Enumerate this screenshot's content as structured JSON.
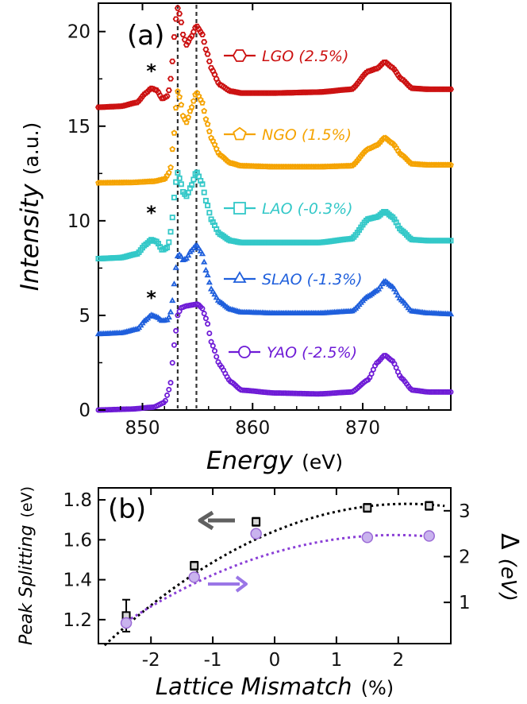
{
  "chart_data": [
    {
      "panel": "(a)",
      "type": "line",
      "xlabel": "Energy",
      "xlabel_unit": "(eV)",
      "ylabel": "Intensity",
      "ylabel_unit": "(a.u.)",
      "xlim": [
        846,
        878
      ],
      "ylim": [
        0,
        21.5
      ],
      "xticks": [
        850,
        860,
        870
      ],
      "yticks": [
        0,
        5,
        10,
        15,
        20
      ],
      "vlines": [
        853.2,
        854.9
      ],
      "star_label": "*",
      "stars": [
        {
          "x": 850.8,
          "y": 18.0
        },
        {
          "x": 850.8,
          "y": 10.5
        },
        {
          "x": 850.8,
          "y": 6.0
        }
      ],
      "series": [
        {
          "name": "LGO (2.5%)",
          "color": "#cc1111",
          "marker": "hexagon",
          "offset": 16.0,
          "x": [
            846,
            848,
            849.5,
            850.3,
            850.8,
            851.3,
            851.8,
            852.3,
            852.6,
            852.9,
            853.15,
            853.4,
            853.7,
            854.0,
            854.4,
            854.9,
            855.4,
            855.8,
            856.3,
            857,
            858,
            859,
            862,
            866,
            869,
            870.5,
            871.3,
            872,
            872.7,
            873.5,
            874.5,
            876,
            878
          ],
          "y": [
            16.0,
            16.05,
            16.25,
            16.75,
            17.0,
            16.9,
            16.45,
            16.6,
            17.6,
            19.8,
            21.3,
            20.9,
            19.8,
            19.3,
            19.7,
            20.3,
            19.9,
            19.0,
            18.0,
            17.2,
            16.85,
            16.75,
            16.75,
            16.8,
            16.95,
            17.9,
            18.05,
            18.4,
            18.1,
            17.5,
            17.0,
            16.95,
            16.95
          ]
        },
        {
          "name": "NGO (1.5%)",
          "color": "#f5a300",
          "marker": "pentagon",
          "offset": 12.0,
          "x": [
            846,
            849,
            851,
            852,
            852.5,
            852.9,
            853.15,
            853.4,
            853.7,
            854.0,
            854.4,
            854.9,
            855.4,
            855.8,
            856.3,
            857,
            858,
            859,
            862,
            866,
            869,
            870.5,
            871.3,
            872,
            872.7,
            873.5,
            874.5,
            876,
            878
          ],
          "y": [
            12.0,
            12.02,
            12.08,
            12.2,
            12.6,
            14.7,
            16.9,
            16.5,
            15.5,
            15.2,
            15.9,
            16.8,
            16.3,
            15.3,
            14.3,
            13.5,
            13.05,
            12.9,
            12.85,
            12.85,
            12.9,
            13.8,
            14.0,
            14.4,
            14.1,
            13.5,
            13.0,
            12.95,
            12.95
          ]
        },
        {
          "name": "LAO (-0.3%)",
          "color": "#33c8c8",
          "marker": "square",
          "offset": 8.0,
          "x": [
            846,
            848,
            849.5,
            850.3,
            850.8,
            851.3,
            851.8,
            852.3,
            852.6,
            852.9,
            853.15,
            853.4,
            853.7,
            854.0,
            854.4,
            854.9,
            855.4,
            855.8,
            856.3,
            857,
            858,
            859,
            862,
            866,
            869,
            870.5,
            871.3,
            872,
            872.7,
            873.5,
            874.5,
            876,
            878
          ],
          "y": [
            8.0,
            8.05,
            8.25,
            8.75,
            9.0,
            8.9,
            8.45,
            8.6,
            9.5,
            11.3,
            12.6,
            12.2,
            11.5,
            11.3,
            11.8,
            12.6,
            12.0,
            11.0,
            10.0,
            9.3,
            8.95,
            8.85,
            8.85,
            8.85,
            9.05,
            10.1,
            10.2,
            10.5,
            10.2,
            9.5,
            9.0,
            8.95,
            8.95
          ]
        },
        {
          "name": "SLAO (-1.3%)",
          "color": "#1f5fdc",
          "marker": "triangle",
          "offset": 4.0,
          "x": [
            846,
            848,
            849.5,
            850.3,
            850.8,
            851.3,
            851.8,
            852.3,
            852.6,
            852.9,
            853.15,
            853.4,
            853.7,
            854.0,
            854.4,
            854.9,
            855.4,
            855.8,
            856.3,
            857,
            858,
            859,
            862,
            866,
            869,
            870.5,
            871.3,
            872,
            872.7,
            873.5,
            874.5,
            876,
            878
          ],
          "y": [
            4.0,
            4.05,
            4.25,
            4.75,
            5.0,
            4.9,
            4.7,
            4.75,
            5.2,
            6.7,
            8.1,
            8.2,
            7.9,
            8.0,
            8.4,
            8.7,
            8.3,
            7.3,
            6.3,
            5.7,
            5.3,
            5.15,
            5.1,
            5.1,
            5.2,
            6.0,
            6.3,
            6.8,
            6.5,
            5.8,
            5.2,
            5.1,
            5.05
          ]
        },
        {
          "name": "YAO (-2.5%)",
          "color": "#6e1bd6",
          "marker": "circle",
          "offset": 0.0,
          "x": [
            846,
            849,
            851,
            852,
            852.5,
            852.9,
            853.2,
            853.5,
            854,
            854.5,
            855,
            855.4,
            855.8,
            856.3,
            857,
            858,
            859,
            862,
            866,
            869,
            870.5,
            871.3,
            872,
            872.7,
            873.5,
            874.5,
            876,
            878
          ],
          "y": [
            0.0,
            0.05,
            0.15,
            0.4,
            1.2,
            3.5,
            5.0,
            5.4,
            5.5,
            5.55,
            5.6,
            5.4,
            4.8,
            3.5,
            2.4,
            1.5,
            1.05,
            0.9,
            0.85,
            0.95,
            1.6,
            2.5,
            2.9,
            2.6,
            1.7,
            1.05,
            0.95,
            0.95
          ]
        }
      ]
    },
    {
      "panel": "(b)",
      "type": "scatter",
      "xlabel": "Lattice Mismatch",
      "xlabel_unit": "(%)",
      "ylabel_left": "Peak Splitting",
      "ylabel_left_unit": "(eV)",
      "ylabel_right_symbol": "Δ",
      "ylabel_right_unit": "(eV)",
      "xlim": [
        -2.85,
        2.85
      ],
      "ylim_left": [
        1.08,
        1.86
      ],
      "ylim_right": [
        0.1,
        3.5
      ],
      "xticks": [
        -2,
        -1,
        0,
        1,
        2
      ],
      "yticks_left": [
        1.2,
        1.4,
        1.6,
        1.8
      ],
      "yticks_right": [
        1,
        2,
        3
      ],
      "series": [
        {
          "name": "Peak Splitting",
          "axis": "left",
          "color": "#000000",
          "marker": "square",
          "x": [
            -2.4,
            -1.3,
            -0.3,
            1.5,
            2.5
          ],
          "y": [
            1.22,
            1.47,
            1.69,
            1.76,
            1.77
          ],
          "yerr": [
            0.08,
            0.02,
            0.02,
            0.02,
            0.02
          ],
          "fit": {
            "color": "#000000",
            "xrange": [
              -2.75,
              2.75
            ],
            "vertex_x": 2.15,
            "vertex_y": 1.78,
            "curvature": -0.0295
          }
        },
        {
          "name": "Δ",
          "axis": "right",
          "color": "#9b6bd6",
          "marker": "circle",
          "x": [
            -2.4,
            -1.3,
            -0.3,
            1.5,
            2.5
          ],
          "y": [
            0.55,
            1.55,
            2.5,
            2.42,
            2.45
          ],
          "fit": {
            "color": "#8a3fd6",
            "xrange": [
              -2.4,
              2.5
            ],
            "vertex_x": 1.95,
            "vertex_y": 2.47,
            "curvature": -0.1
          }
        }
      ],
      "arrows": [
        {
          "direction": "left",
          "color": "#606060",
          "points_to": "left axis"
        },
        {
          "direction": "right",
          "color": "#9a76e6",
          "points_to": "right axis"
        }
      ]
    }
  ]
}
